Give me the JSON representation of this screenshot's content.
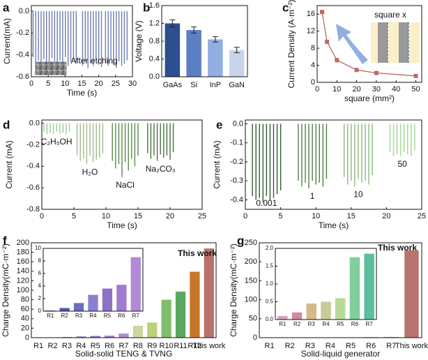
{
  "chart_data": [
    {
      "type": "spike",
      "panel": "a",
      "xlabel": "Time (s)",
      "ylabel": "Current(mA)",
      "annotation": "After etching",
      "xlim": [
        0,
        30
      ],
      "ylim": [
        -0.6,
        0.05
      ],
      "xticks": [
        0,
        5,
        10,
        15,
        20,
        25,
        30
      ],
      "yticks": [
        {
          "value": 0,
          "label": "0.0"
        },
        -0.2,
        -0.4,
        -0.6
      ],
      "series": [
        {
          "color": "#6d7cb0",
          "x": [
            0.5,
            1.3,
            2.1,
            2.9,
            3.7,
            4.5,
            5.3,
            6.1,
            6.9,
            7.7,
            8.5,
            9.3,
            10.1,
            10.9,
            11.7,
            12.5,
            13.3
          ],
          "values": [
            -0.42,
            -0.48,
            -0.45,
            -0.5,
            -0.44,
            -0.47,
            -0.5,
            -0.43,
            -0.46,
            -0.49,
            -0.45,
            -0.48,
            -0.42,
            -0.5,
            -0.46,
            -0.44,
            -0.47
          ]
        },
        {
          "color": "#6d7cb0",
          "x": [
            15.2,
            16,
            16.8,
            17.6,
            18.4,
            19.2,
            20,
            20.8,
            22,
            22.8,
            23.6,
            24.4,
            25.2,
            26,
            26.8,
            27.6,
            28.4
          ],
          "values": [
            -0.5,
            -0.46,
            -0.52,
            -0.48,
            -0.5,
            -0.45,
            -0.49,
            -0.51,
            -0.47,
            -0.5,
            -0.44,
            -0.49,
            -0.52,
            -0.46,
            -0.5,
            -0.48,
            -0.45
          ]
        }
      ]
    },
    {
      "type": "bar",
      "panel": "b",
      "ylabel": "Voltage (V)",
      "categories": [
        "GaAs",
        "Si",
        "InP",
        "GaN"
      ],
      "values": [
        1.2,
        1.05,
        0.84,
        0.6
      ],
      "errors": [
        0.08,
        0.07,
        0.06,
        0.06
      ],
      "colors": [
        "#2b4f8f",
        "#5b7fc2",
        "#93aee0",
        "#c8d4ea"
      ],
      "ylim": [
        0,
        1.6
      ],
      "yticks": [
        {
          "value": 0,
          "label": "0.0"
        },
        0.4,
        0.8,
        1.2,
        1.6
      ]
    },
    {
      "type": "line",
      "panel": "c",
      "xlabel": "square (mm²)",
      "ylabel": "Current Density (A·m⁻²)",
      "annotation": "square x",
      "xlim": [
        0,
        53
      ],
      "ylim": [
        0,
        18
      ],
      "xticks": [
        0,
        10,
        20,
        30,
        40,
        50
      ],
      "yticks": [
        0,
        4,
        8,
        12,
        16
      ],
      "series": [
        {
          "color": "#b86b63",
          "x": [
            2.5,
            5,
            10,
            20,
            30,
            50
          ],
          "values": [
            16.5,
            9.5,
            5.2,
            2.9,
            2.2,
            1.5
          ]
        }
      ]
    },
    {
      "type": "spike",
      "panel": "d",
      "xlabel": "Time (s)",
      "ylabel": "Current  (mA)",
      "xlim": [
        0,
        25
      ],
      "ylim": [
        -0.8,
        0.03
      ],
      "xticks": [
        0,
        5,
        10,
        15,
        20,
        25
      ],
      "yticks": [
        {
          "value": 0,
          "label": "0.0"
        },
        -0.2,
        -0.4,
        -0.6,
        -0.8
      ],
      "series": [
        {
          "name": "C₂H₅OH",
          "color": "#8fd08a",
          "x": [
            0.3,
            0.8,
            1.3,
            1.8,
            2.3,
            2.8,
            3.3,
            3.8,
            4.3
          ],
          "values": [
            -0.08,
            -0.1,
            -0.09,
            -0.1,
            -0.08,
            -0.1,
            -0.09,
            -0.1,
            -0.08
          ]
        },
        {
          "name": "H₂O",
          "color": "#a3b888",
          "x": [
            5.5,
            6,
            6.5,
            7,
            7.5,
            8,
            8.5,
            9,
            9.5
          ],
          "values": [
            -0.3,
            -0.35,
            -0.33,
            -0.38,
            -0.3,
            -0.36,
            -0.34,
            -0.32,
            -0.28
          ]
        },
        {
          "name": "NaCl",
          "color": "#5a8a48",
          "x": [
            11,
            11.5,
            12,
            12.5,
            13,
            13.5,
            14,
            14.5,
            15
          ],
          "values": [
            -0.35,
            -0.42,
            -0.38,
            -0.5,
            -0.36,
            -0.44,
            -0.33,
            -0.4,
            -0.3
          ]
        },
        {
          "name": "Na₂CO₃",
          "color": "#4a7040",
          "x": [
            16.5,
            17,
            17.5,
            18,
            18.5,
            19,
            19.5,
            20,
            20.5
          ],
          "values": [
            -0.28,
            -0.33,
            -0.3,
            -0.35,
            -0.29,
            -0.32,
            -0.3,
            -0.34,
            -0.27
          ]
        }
      ]
    },
    {
      "type": "spike",
      "panel": "e",
      "xlabel": "Time (s)",
      "ylabel": "Current  (mA)",
      "xlim": [
        0,
        25
      ],
      "ylim": [
        -0.45,
        0.02
      ],
      "xticks": [
        0,
        5,
        10,
        15,
        20,
        25
      ],
      "yticks": [
        {
          "value": 0,
          "label": "0.0"
        },
        -0.1,
        -0.2,
        -0.3,
        -0.4
      ],
      "series": [
        {
          "name": "0.001",
          "color": "#2e5a2e",
          "x": [
            1,
            1.5,
            2,
            2.5,
            3,
            3.5,
            4,
            4.5,
            5
          ],
          "values": [
            -0.38,
            -0.4,
            -0.39,
            -0.41,
            -0.38,
            -0.4,
            -0.39,
            -0.37,
            -0.35
          ]
        },
        {
          "name": "1",
          "color": "#4f7e45",
          "x": [
            7.5,
            8,
            8.5,
            9,
            9.5,
            10,
            10.5,
            11,
            11.5
          ],
          "values": [
            -0.3,
            -0.33,
            -0.31,
            -0.34,
            -0.3,
            -0.32,
            -0.31,
            -0.33,
            -0.29
          ]
        },
        {
          "name": "10",
          "color": "#8cb87a",
          "x": [
            14,
            14.5,
            15,
            15.5,
            16,
            16.5,
            17,
            17.5,
            18
          ],
          "values": [
            -0.28,
            -0.32,
            -0.3,
            -0.33,
            -0.29,
            -0.31,
            -0.3,
            -0.32,
            -0.27
          ]
        },
        {
          "name": "50",
          "color": "#9ed88f",
          "x": [
            20.5,
            21,
            21.5,
            22,
            22.5,
            23,
            23.5,
            24
          ],
          "values": [
            -0.15,
            -0.17,
            -0.16,
            -0.17,
            -0.15,
            -0.16,
            -0.17,
            -0.14
          ]
        }
      ]
    },
    {
      "type": "bar",
      "panel": "f",
      "xlabel": "Solid-solid TENG & TVNG",
      "ylabel": "Charge Density(mC·m⁻²)",
      "annotation": "This work",
      "categories": [
        "R1",
        "R2",
        "R3",
        "R4",
        "R5",
        "R6",
        "R7",
        "R8",
        "R9",
        "R10",
        "R11",
        "R12",
        "This work"
      ],
      "values": [
        0.1,
        0.5,
        1.3,
        2.6,
        3.6,
        4.2,
        8.6,
        25,
        32,
        80,
        97,
        139,
        188
      ],
      "colors": [
        "#3b4a9c",
        "#4b5aa8",
        "#6a6fc0",
        "#8a7fcf",
        "#8d73c6",
        "#a07cd0",
        "#b28ad8",
        "#c9d8a0",
        "#b9d27a",
        "#7fbf6a",
        "#5aa860",
        "#c9762a",
        "#b8736e"
      ],
      "ylim": [
        0,
        200
      ],
      "yticks": [
        0,
        20,
        40,
        60,
        80,
        100,
        120,
        140,
        160,
        180,
        200
      ]
    },
    {
      "type": "bar",
      "categories": [
        "R1",
        "R2",
        "R3",
        "R4",
        "R5",
        "R6",
        "R7"
      ],
      "values": [
        0.1,
        0.5,
        1.3,
        2.6,
        3.6,
        4.2,
        8.6
      ],
      "colors": [
        "#3b4a9c",
        "#4b5aa8",
        "#6a6fc0",
        "#8a7fcf",
        "#8d73c6",
        "#a07cd0",
        "#b28ad8"
      ],
      "ylim": [
        0,
        10
      ],
      "yticks": [
        0,
        2,
        4,
        6,
        8,
        10
      ]
    },
    {
      "type": "bar",
      "panel": "g",
      "xlabel": "Solid-liquid generator",
      "ylabel": "Charge Density(mC·m⁻²)",
      "annotation": "This work",
      "categories": [
        "R1",
        "R2",
        "R3",
        "R4",
        "R5",
        "R6",
        "R7",
        "This work"
      ],
      "values": [
        0.1,
        0.2,
        0.45,
        0.5,
        0.6,
        1.75,
        1.85,
        230
      ],
      "colors": [
        "#d9a0c0",
        "#d08aa0",
        "#d6b98a",
        "#c9c999",
        "#b9d99a",
        "#7fcf9a",
        "#5bbf9a",
        "#b8736e"
      ],
      "ylim": [
        0,
        250
      ],
      "yticks": [
        0,
        50,
        100,
        150,
        200,
        250
      ]
    },
    {
      "type": "bar",
      "categories": [
        "R1",
        "R2",
        "R3",
        "R4",
        "R5",
        "R6",
        "R7"
      ],
      "values": [
        0.1,
        0.2,
        0.45,
        0.5,
        0.6,
        1.75,
        1.85
      ],
      "colors": [
        "#d9a0c0",
        "#d08aa0",
        "#d6b98a",
        "#c9c999",
        "#b9d99a",
        "#7fcf9a",
        "#5bbf9a"
      ],
      "ylim": [
        0,
        2
      ],
      "yticks": [
        {
          "value": 0,
          "label": "0.0"
        },
        0.5,
        {
          "value": 1,
          "label": "1.0"
        },
        1.5,
        {
          "value": 2,
          "label": "2.0"
        }
      ]
    }
  ]
}
